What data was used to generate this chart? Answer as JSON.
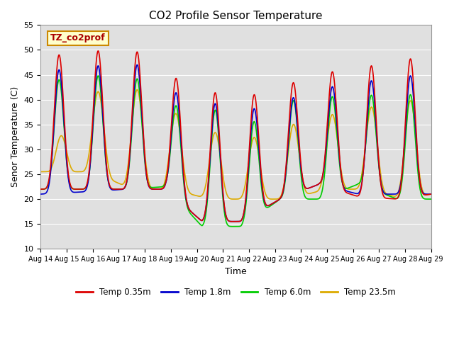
{
  "title": "CO2 Profile Sensor Temperature",
  "xlabel": "Time",
  "ylabel": "Senor Temperature (C)",
  "ylim": [
    10,
    55
  ],
  "xlim": [
    0,
    15
  ],
  "annotation_text": "TZ_co2prof",
  "annotation_bg": "#ffffcc",
  "annotation_border": "#cc8800",
  "annotation_text_color": "#aa0000",
  "grid_color": "#ffffff",
  "bg_color": "#e0e0e0",
  "legend_labels": [
    "Temp 0.35m",
    "Temp 1.8m",
    "Temp 6.0m",
    "Temp 23.5m"
  ],
  "legend_colors": [
    "#dd0000",
    "#0000cc",
    "#00cc00",
    "#ddaa00"
  ],
  "line_width": 1.2,
  "xtick_labels": [
    "Aug 14",
    "Aug 15",
    "Aug 16",
    "Aug 17",
    "Aug 18",
    "Aug 19",
    "Aug 20",
    "Aug 21",
    "Aug 22",
    "Aug 23",
    "Aug 24",
    "Aug 25",
    "Aug 26",
    "Aug 27",
    "Aug 28",
    "Aug 29"
  ],
  "ytick_values": [
    10,
    15,
    20,
    25,
    30,
    35,
    40,
    45,
    50,
    55
  ]
}
